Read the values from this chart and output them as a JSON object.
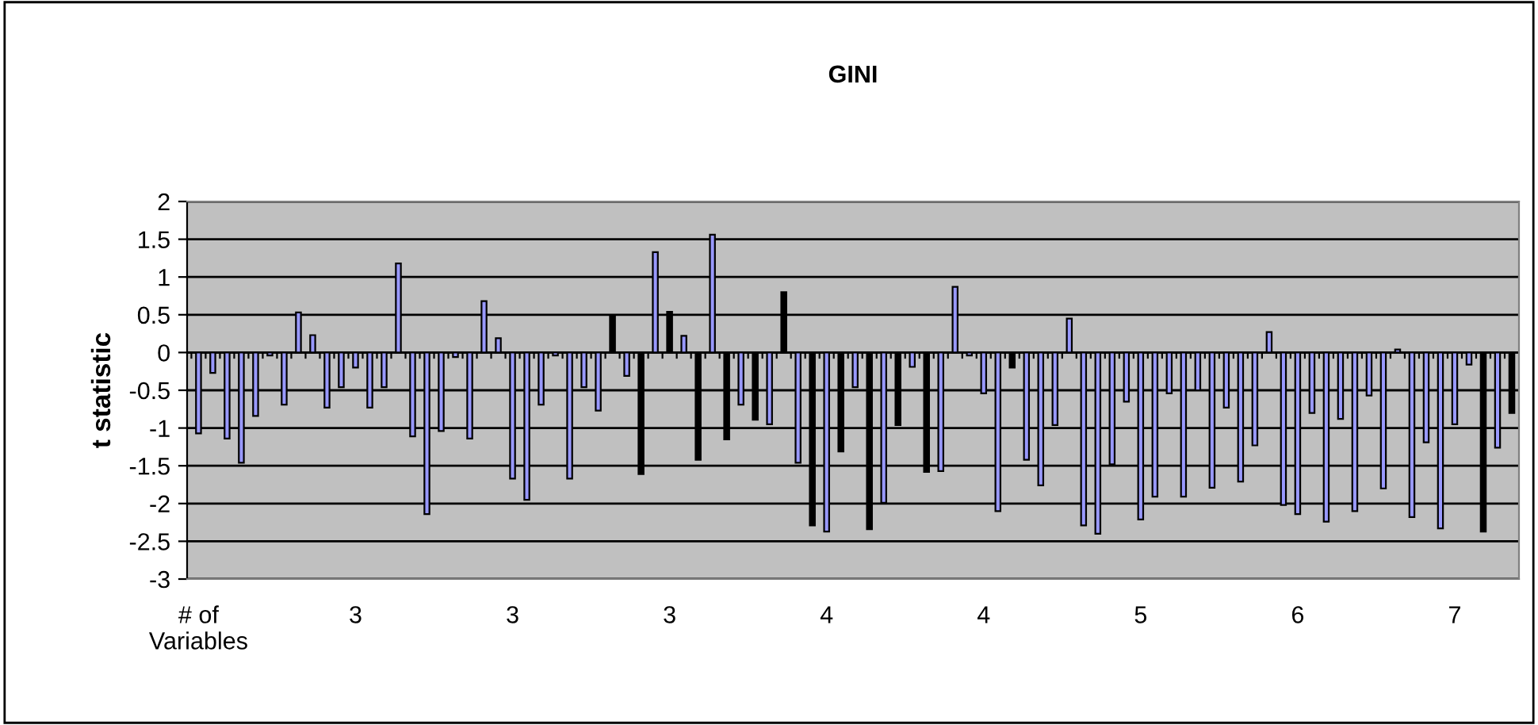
{
  "chart_data": {
    "type": "bar",
    "title": "GINI",
    "ylabel": "t statistic",
    "categories": [
      "# of\nVariables",
      null,
      null,
      null,
      null,
      null,
      null,
      null,
      null,
      null,
      null,
      "3",
      null,
      null,
      null,
      null,
      null,
      null,
      null,
      null,
      null,
      null,
      "3",
      null,
      null,
      null,
      null,
      null,
      null,
      null,
      null,
      null,
      null,
      "3",
      null,
      null,
      null,
      null,
      null,
      null,
      null,
      null,
      null,
      null,
      "4",
      null,
      null,
      null,
      null,
      null,
      null,
      null,
      null,
      null,
      null,
      "4",
      null,
      null,
      null,
      null,
      null,
      null,
      null,
      null,
      null,
      null,
      "5",
      null,
      null,
      null,
      null,
      null,
      null,
      null,
      null,
      null,
      null,
      "6",
      null,
      null,
      null,
      null,
      null,
      null,
      null,
      null,
      null,
      null,
      "7",
      null,
      null,
      null,
      null
    ],
    "values": [
      -1.07,
      -0.27,
      -1.14,
      -1.46,
      -0.84,
      -0.04,
      -0.69,
      0.53,
      0.23,
      -0.73,
      -0.46,
      -0.2,
      -0.73,
      -0.46,
      1.18,
      -1.11,
      -2.14,
      -1.04,
      -0.06,
      -1.14,
      0.68,
      0.19,
      -1.67,
      -1.95,
      -0.69,
      -0.04,
      -1.67,
      -0.46,
      -0.77,
      0.49,
      -0.31,
      -1.61,
      1.33,
      0.54,
      0.22,
      -1.42,
      1.56,
      -1.15,
      -0.69,
      -0.89,
      -0.95,
      0.8,
      -1.46,
      -2.29,
      -2.37,
      -1.31,
      -0.46,
      -2.34,
      -1.99,
      -0.96,
      -0.19,
      -1.58,
      -1.57,
      0.87,
      -0.04,
      -0.54,
      -2.1,
      -0.2,
      -1.42,
      -1.76,
      -0.96,
      0.45,
      -2.29,
      -2.4,
      -1.48,
      -0.65,
      -2.21,
      -1.91,
      -0.54,
      -1.91,
      -0.5,
      -1.79,
      -0.73,
      -1.71,
      -1.23,
      0.27,
      -2.02,
      -2.14,
      -0.8,
      -2.24,
      -0.88,
      -2.1,
      -0.57,
      -1.8,
      0.04,
      -2.18,
      -1.19,
      -2.33,
      -0.95,
      -0.16,
      -2.37,
      -1.26,
      -0.8
    ],
    "colors": [
      "#9999ff",
      "#9999ff",
      "#9999ff",
      "#9999ff",
      "#9999ff",
      "#9999ff",
      "#9999ff",
      "#9999ff",
      "#9999ff",
      "#9999ff",
      "#9999ff",
      "#9999ff",
      "#9999ff",
      "#9999ff",
      "#9999ff",
      "#9999ff",
      "#9999ff",
      "#9999ff",
      "#9999ff",
      "#9999ff",
      "#9999ff",
      "#9999ff",
      "#9999ff",
      "#9999ff",
      "#9999ff",
      "#9999ff",
      "#9999ff",
      "#9999ff",
      "#9999ff",
      "#000000",
      "#9999ff",
      "#000000",
      "#9999ff",
      "#000000",
      "#9999ff",
      "#000000",
      "#9999ff",
      "#000000",
      "#9999ff",
      "#000000",
      "#9999ff",
      "#000000",
      "#9999ff",
      "#000000",
      "#9999ff",
      "#000000",
      "#9999ff",
      "#000000",
      "#9999ff",
      "#000000",
      "#9999ff",
      "#000000",
      "#9999ff",
      "#9999ff",
      "#9999ff",
      "#9999ff",
      "#9999ff",
      "#000000",
      "#9999ff",
      "#9999ff",
      "#9999ff",
      "#9999ff",
      "#9999ff",
      "#9999ff",
      "#9999ff",
      "#9999ff",
      "#9999ff",
      "#9999ff",
      "#9999ff",
      "#9999ff",
      "#9999ff",
      "#9999ff",
      "#9999ff",
      "#9999ff",
      "#9999ff",
      "#9999ff",
      "#9999ff",
      "#9999ff",
      "#9999ff",
      "#9999ff",
      "#9999ff",
      "#9999ff",
      "#9999ff",
      "#9999ff",
      "#9999ff",
      "#9999ff",
      "#9999ff",
      "#9999ff",
      "#9999ff",
      "#9999ff",
      "#000000",
      "#9999ff",
      "#000000"
    ],
    "ylim": [
      -3,
      2
    ],
    "yticks": [
      -3,
      -2.5,
      -2,
      -1.5,
      -1,
      -0.5,
      0,
      0.5,
      1,
      1.5,
      2
    ],
    "grid": "y",
    "legend": false
  }
}
